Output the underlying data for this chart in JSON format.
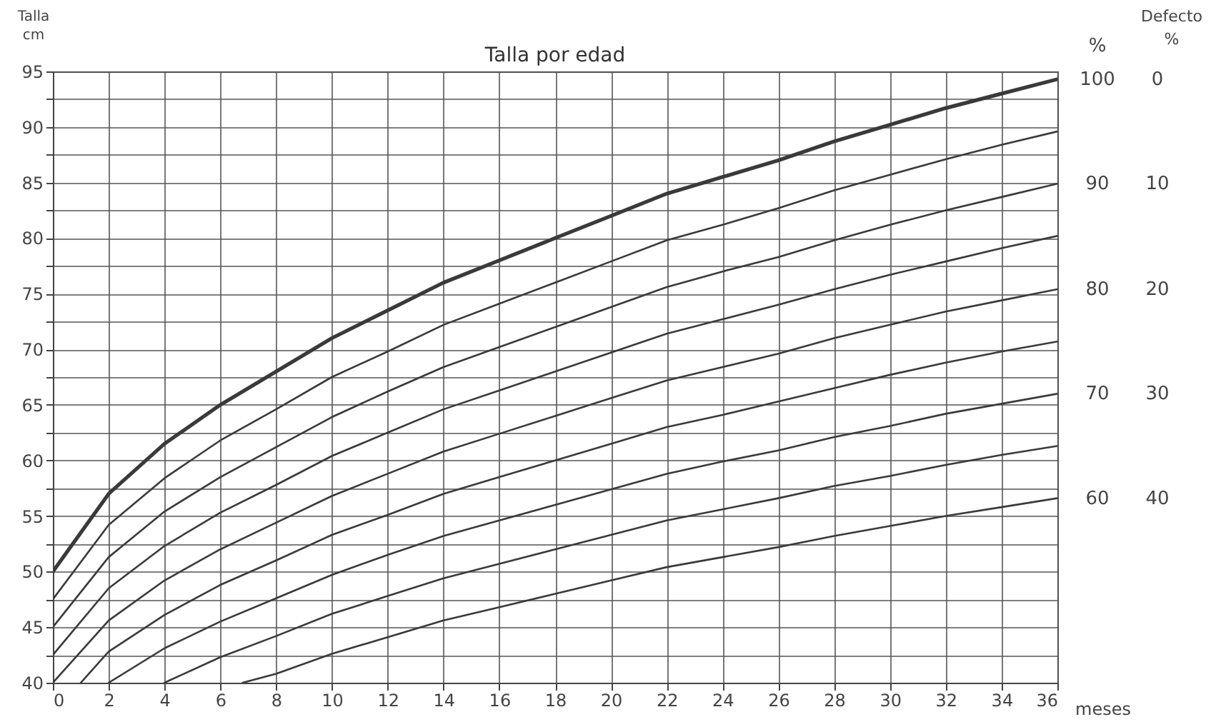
{
  "chart_data": {
    "type": "line",
    "title": "Talla por edad",
    "xlabel": "meses",
    "ylabel": "Talla\ncm",
    "legend_title": "%",
    "xlim": [
      0,
      36
    ],
    "xticks": [
      0,
      2,
      4,
      6,
      8,
      10,
      12,
      14,
      16,
      18,
      20,
      22,
      24,
      26,
      28,
      30,
      32,
      34,
      36
    ],
    "ylim": [
      40,
      95
    ],
    "yticks": [
      40,
      {
        "value": 42.5,
        "label": null
      },
      45,
      {
        "value": 47.5,
        "label": null
      },
      50,
      {
        "value": 52.5,
        "label": null
      },
      55,
      {
        "value": 57.5,
        "label": null
      },
      60,
      {
        "value": 62.5,
        "label": null
      },
      65,
      {
        "value": 67.5,
        "label": null
      },
      70,
      {
        "value": 72.5,
        "label": null
      },
      75,
      {
        "value": 77.5,
        "label": null
      },
      80,
      {
        "value": 82.5,
        "label": null
      },
      85,
      {
        "value": 87.5,
        "label": null
      },
      90,
      {
        "value": 92.5,
        "label": null
      },
      95
    ],
    "grid": true,
    "series": [
      {
        "name": "100",
        "color": "#3a3a3a",
        "x": [
          0,
          2,
          4,
          6,
          8,
          10,
          12,
          14,
          16,
          18,
          20,
          22,
          24,
          26,
          28,
          30,
          32,
          34,
          36
        ],
        "values": [
          50,
          57,
          61.5,
          65,
          68,
          71,
          73.5,
          76,
          78,
          80,
          82,
          84,
          85.5,
          87,
          88.7,
          90.2,
          91.7,
          93,
          94.3
        ]
      },
      {
        "color": "#3a3a3a",
        "x": [
          0,
          2,
          4,
          6,
          8,
          10,
          12,
          14,
          16,
          18,
          20,
          22,
          24,
          26,
          28,
          30,
          32,
          34,
          36
        ],
        "values": [
          47.5,
          54.2,
          58.4,
          61.8,
          64.6,
          67.5,
          69.8,
          72.2,
          74.1,
          76,
          77.9,
          79.8,
          81.2,
          82.7,
          84.3,
          85.7,
          87.1,
          88.4,
          89.6
        ]
      },
      {
        "name": "90",
        "color": "#3a3a3a",
        "x": [
          0,
          2,
          4,
          6,
          8,
          10,
          12,
          14,
          16,
          18,
          20,
          22,
          24,
          26,
          28,
          30,
          32,
          34,
          36
        ],
        "values": [
          45,
          51.3,
          55.4,
          58.5,
          61.2,
          63.9,
          66.2,
          68.4,
          70.2,
          72,
          73.8,
          75.6,
          77,
          78.3,
          79.8,
          81.2,
          82.5,
          83.7,
          84.9
        ]
      },
      {
        "color": "#3a3a3a",
        "x": [
          0,
          2,
          4,
          6,
          8,
          10,
          12,
          14,
          16,
          18,
          20,
          22,
          24,
          26,
          28,
          30,
          32,
          34,
          36
        ],
        "values": [
          42.5,
          48.5,
          52.3,
          55.3,
          57.8,
          60.4,
          62.5,
          64.6,
          66.3,
          68,
          69.7,
          71.4,
          72.7,
          74,
          75.4,
          76.7,
          77.9,
          79.1,
          80.2
        ]
      },
      {
        "name": "80",
        "color": "#3a3a3a",
        "x": [
          0,
          2,
          4,
          6,
          8,
          10,
          12,
          14,
          16,
          18,
          20,
          22,
          24,
          26,
          28,
          30,
          32,
          34,
          36
        ],
        "values": [
          40,
          45.6,
          49.2,
          52,
          54.4,
          56.8,
          58.8,
          60.8,
          62.4,
          64,
          65.6,
          67.2,
          68.4,
          69.6,
          71,
          72.2,
          73.4,
          74.4,
          75.4
        ]
      },
      {
        "color": "#3a3a3a",
        "x": [
          1,
          2,
          4,
          6,
          8,
          10,
          12,
          14,
          16,
          18,
          20,
          22,
          24,
          26,
          28,
          30,
          32,
          34,
          36
        ],
        "values": [
          40,
          42.8,
          46.1,
          48.8,
          51,
          53.3,
          55.1,
          57,
          58.5,
          60,
          61.5,
          63,
          64.1,
          65.3,
          66.5,
          67.7,
          68.8,
          69.8,
          70.7
        ]
      },
      {
        "name": "70",
        "color": "#3a3a3a",
        "x": [
          2,
          4,
          6,
          8,
          10,
          12,
          14,
          16,
          18,
          20,
          22,
          24,
          26,
          28,
          30,
          32,
          34,
          36
        ],
        "values": [
          40,
          43.1,
          45.5,
          47.6,
          49.7,
          51.5,
          53.2,
          54.6,
          56,
          57.4,
          58.8,
          59.9,
          60.9,
          62.1,
          63.1,
          64.2,
          65.1,
          66
        ]
      },
      {
        "color": "#3a3a3a",
        "x": [
          4,
          6,
          8,
          10,
          12,
          14,
          16,
          18,
          20,
          22,
          24,
          26,
          28,
          30,
          32,
          34,
          36
        ],
        "values": [
          40,
          42.3,
          44.2,
          46.2,
          47.8,
          49.4,
          50.7,
          52,
          53.3,
          54.6,
          55.6,
          56.6,
          57.7,
          58.6,
          59.6,
          60.5,
          61.3
        ]
      },
      {
        "name": "60",
        "color": "#3a3a3a",
        "x": [
          6.8,
          8,
          10,
          12,
          14,
          16,
          18,
          20,
          22,
          24,
          26,
          28,
          30,
          32,
          34,
          36
        ],
        "values": [
          40,
          40.8,
          42.6,
          44.1,
          45.6,
          46.8,
          48,
          49.2,
          50.4,
          51.3,
          52.2,
          53.2,
          54.1,
          55,
          55.8,
          56.6
        ]
      }
    ],
    "annotations": [
      "Defecto\n%",
      "0",
      "10",
      "20",
      "30",
      "40"
    ]
  }
}
